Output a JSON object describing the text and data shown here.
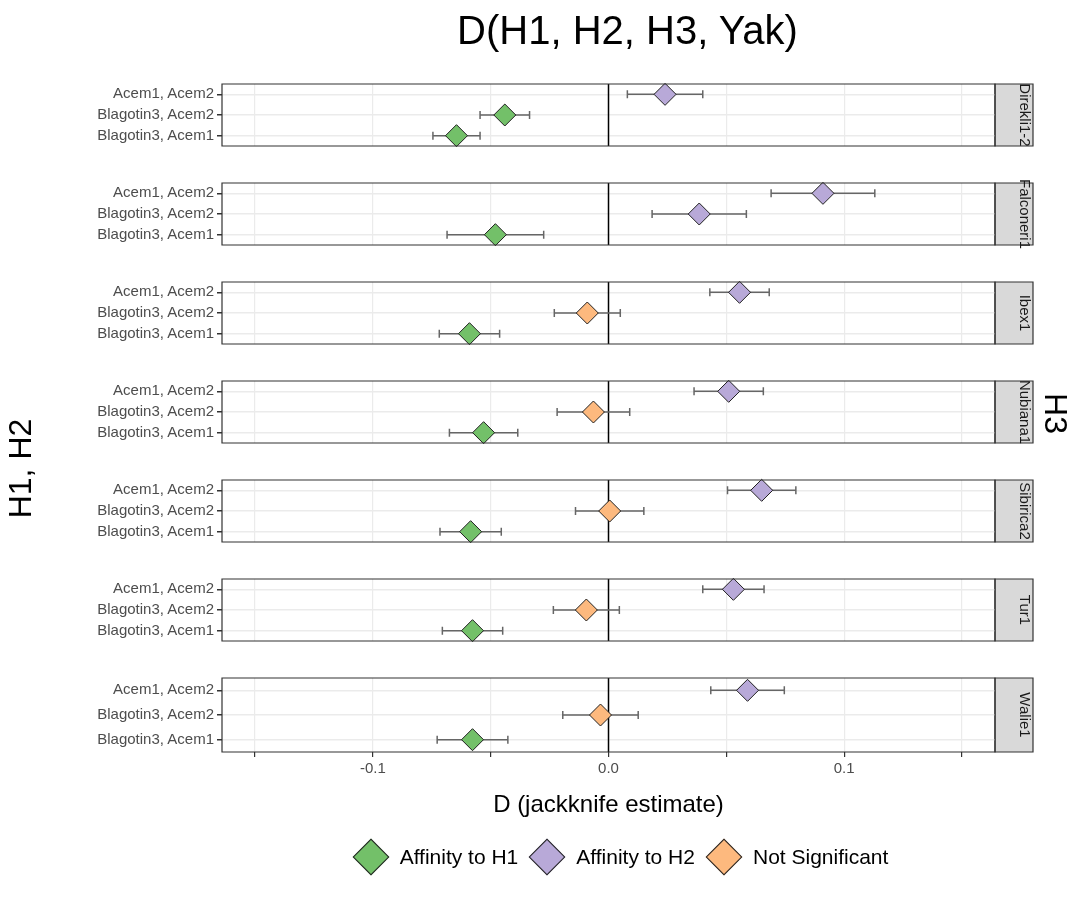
{
  "chart_data": [
    {
      "type": "scatter",
      "title": "D(H1, H2, H3, Yak)",
      "y2label": "Direkli1-2",
      "orientation": "horizontal",
      "marker": "diamond",
      "grid": true,
      "tick_labels": "y",
      "xlim": [
        -0.164,
        0.164
      ],
      "xticks": [
        {
          "value": -0.15,
          "label": null
        },
        {
          "value": -0.1,
          "label": null
        },
        {
          "value": -0.05,
          "label": null
        },
        {
          "value": 0,
          "label": null
        },
        {
          "value": 0.05,
          "label": null
        },
        {
          "value": 0.1,
          "label": null
        },
        {
          "value": 0.15,
          "label": null
        }
      ],
      "ref_lines": [
        {
          "axis": "x",
          "value": 0,
          "color": "#000000"
        }
      ],
      "categories": [
        "Acem1, Acem2",
        "Blagotin3, Acem2",
        "Blagotin3, Acem1"
      ],
      "series": [
        {
          "color": "#73c069",
          "values": [
            null,
            -0.044,
            -0.0645
          ],
          "errors": [
            null,
            0.0105,
            0.01
          ]
        },
        {
          "color": "#b8a9d8",
          "values": [
            0.024,
            null,
            null
          ],
          "errors": [
            0.016,
            null,
            null
          ]
        },
        {
          "color": "#fdb97e",
          "values": [
            null,
            null,
            null
          ],
          "errors": [
            null,
            null,
            null
          ]
        }
      ]
    },
    {
      "type": "scatter",
      "y2label": "Falconeri1",
      "orientation": "horizontal",
      "marker": "diamond",
      "grid": true,
      "tick_labels": "y",
      "xlim": [
        -0.164,
        0.164
      ],
      "xticks": [
        {
          "value": -0.15,
          "label": null
        },
        {
          "value": -0.1,
          "label": null
        },
        {
          "value": -0.05,
          "label": null
        },
        {
          "value": 0,
          "label": null
        },
        {
          "value": 0.05,
          "label": null
        },
        {
          "value": 0.1,
          "label": null
        },
        {
          "value": 0.15,
          "label": null
        }
      ],
      "ref_lines": [
        {
          "axis": "x",
          "value": 0,
          "color": "#000000"
        }
      ],
      "categories": [
        "Acem1, Acem2",
        "Blagotin3, Acem2",
        "Blagotin3, Acem1"
      ],
      "series": [
        {
          "color": "#73c069",
          "values": [
            null,
            null,
            -0.048
          ],
          "errors": [
            null,
            null,
            0.0205
          ]
        },
        {
          "color": "#b8a9d8",
          "values": [
            0.091,
            0.0385,
            null
          ],
          "errors": [
            0.022,
            0.02,
            null
          ]
        },
        {
          "color": "#fdb97e",
          "values": [
            null,
            null,
            null
          ],
          "errors": [
            null,
            null,
            null
          ]
        }
      ]
    },
    {
      "type": "scatter",
      "y2label": "Ibex1",
      "orientation": "horizontal",
      "marker": "diamond",
      "grid": true,
      "tick_labels": "y",
      "xlim": [
        -0.164,
        0.164
      ],
      "xticks": [
        {
          "value": -0.15,
          "label": null
        },
        {
          "value": -0.1,
          "label": null
        },
        {
          "value": -0.05,
          "label": null
        },
        {
          "value": 0,
          "label": null
        },
        {
          "value": 0.05,
          "label": null
        },
        {
          "value": 0.1,
          "label": null
        },
        {
          "value": 0.15,
          "label": null
        }
      ],
      "ref_lines": [
        {
          "axis": "x",
          "value": 0,
          "color": "#000000"
        }
      ],
      "categories": [
        "Acem1, Acem2",
        "Blagotin3, Acem2",
        "Blagotin3, Acem1"
      ],
      "series": [
        {
          "color": "#73c069",
          "values": [
            null,
            null,
            -0.059
          ],
          "errors": [
            null,
            null,
            0.0128
          ]
        },
        {
          "color": "#b8a9d8",
          "values": [
            0.0556,
            null,
            null
          ],
          "errors": [
            0.0126,
            null,
            null
          ]
        },
        {
          "color": "#fdb97e",
          "values": [
            null,
            -0.009,
            null
          ],
          "errors": [
            null,
            0.014,
            null
          ]
        }
      ]
    },
    {
      "type": "scatter",
      "ylabel": "H1, H2",
      "annotations": [
        "H3"
      ],
      "y2label": "Nubiana1",
      "orientation": "horizontal",
      "marker": "diamond",
      "grid": true,
      "tick_labels": "y",
      "xlim": [
        -0.164,
        0.164
      ],
      "xticks": [
        {
          "value": -0.15,
          "label": null
        },
        {
          "value": -0.1,
          "label": null
        },
        {
          "value": -0.05,
          "label": null
        },
        {
          "value": 0,
          "label": null
        },
        {
          "value": 0.05,
          "label": null
        },
        {
          "value": 0.1,
          "label": null
        },
        {
          "value": 0.15,
          "label": null
        }
      ],
      "ref_lines": [
        {
          "axis": "x",
          "value": 0,
          "color": "#000000"
        }
      ],
      "categories": [
        "Acem1, Acem2",
        "Blagotin3, Acem2",
        "Blagotin3, Acem1"
      ],
      "series": [
        {
          "color": "#73c069",
          "values": [
            null,
            null,
            -0.053
          ],
          "errors": [
            null,
            null,
            0.0145
          ]
        },
        {
          "color": "#b8a9d8",
          "values": [
            0.051,
            null,
            null
          ],
          "errors": [
            0.0147,
            null,
            null
          ]
        },
        {
          "color": "#fdb97e",
          "values": [
            null,
            -0.0064,
            null
          ],
          "errors": [
            null,
            0.0154,
            null
          ]
        }
      ]
    },
    {
      "type": "scatter",
      "y2label": "Sibirica2",
      "orientation": "horizontal",
      "marker": "diamond",
      "grid": true,
      "tick_labels": "y",
      "xlim": [
        -0.164,
        0.164
      ],
      "xticks": [
        {
          "value": -0.15,
          "label": null
        },
        {
          "value": -0.1,
          "label": null
        },
        {
          "value": -0.05,
          "label": null
        },
        {
          "value": 0,
          "label": null
        },
        {
          "value": 0.05,
          "label": null
        },
        {
          "value": 0.1,
          "label": null
        },
        {
          "value": 0.15,
          "label": null
        }
      ],
      "ref_lines": [
        {
          "axis": "x",
          "value": 0,
          "color": "#000000"
        }
      ],
      "categories": [
        "Acem1, Acem2",
        "Blagotin3, Acem2",
        "Blagotin3, Acem1"
      ],
      "series": [
        {
          "color": "#73c069",
          "values": [
            null,
            null,
            -0.0585
          ],
          "errors": [
            null,
            null,
            0.013
          ]
        },
        {
          "color": "#b8a9d8",
          "values": [
            0.065,
            null,
            null
          ],
          "errors": [
            0.0145,
            null,
            null
          ]
        },
        {
          "color": "#fdb97e",
          "values": [
            null,
            0.0005,
            null
          ],
          "errors": [
            null,
            0.0145,
            null
          ]
        }
      ]
    },
    {
      "type": "scatter",
      "y2label": "Tur1",
      "orientation": "horizontal",
      "marker": "diamond",
      "grid": true,
      "tick_labels": "y",
      "xlim": [
        -0.164,
        0.164
      ],
      "xticks": [
        {
          "value": -0.15,
          "label": null
        },
        {
          "value": -0.1,
          "label": null
        },
        {
          "value": -0.05,
          "label": null
        },
        {
          "value": 0,
          "label": null
        },
        {
          "value": 0.05,
          "label": null
        },
        {
          "value": 0.1,
          "label": null
        },
        {
          "value": 0.15,
          "label": null
        }
      ],
      "ref_lines": [
        {
          "axis": "x",
          "value": 0,
          "color": "#000000"
        }
      ],
      "categories": [
        "Acem1, Acem2",
        "Blagotin3, Acem2",
        "Blagotin3, Acem1"
      ],
      "series": [
        {
          "color": "#73c069",
          "values": [
            null,
            null,
            -0.0577
          ],
          "errors": [
            null,
            null,
            0.0128
          ]
        },
        {
          "color": "#b8a9d8",
          "values": [
            0.053,
            null,
            null
          ],
          "errors": [
            0.013,
            null,
            null
          ]
        },
        {
          "color": "#fdb97e",
          "values": [
            null,
            -0.0094,
            null
          ],
          "errors": [
            null,
            0.014,
            null
          ]
        }
      ]
    },
    {
      "type": "scatter",
      "y2label": "Walie1",
      "xlabel": "D (jackknife estimate)",
      "legend": "bottom",
      "orientation": "horizontal",
      "marker": "diamond",
      "grid": true,
      "xlim": [
        -0.164,
        0.164
      ],
      "xticks": [
        {
          "value": -0.15,
          "label": null
        },
        {
          "value": -0.1,
          "label": "-0.1"
        },
        {
          "value": -0.05,
          "label": null
        },
        {
          "value": 0,
          "label": "0.0"
        },
        {
          "value": 0.05,
          "label": null
        },
        {
          "value": 0.1,
          "label": "0.1"
        },
        {
          "value": 0.15,
          "label": null
        }
      ],
      "ref_lines": [
        {
          "axis": "x",
          "value": 0,
          "color": "#000000"
        }
      ],
      "categories": [
        "Acem1, Acem2",
        "Blagotin3, Acem2",
        "Blagotin3, Acem1"
      ],
      "series": [
        {
          "name": "Affinity to H1",
          "color": "#73c069",
          "values": [
            null,
            null,
            -0.0577
          ],
          "errors": [
            null,
            null,
            0.015
          ]
        },
        {
          "name": "Affinity to H2",
          "color": "#b8a9d8",
          "values": [
            0.059,
            null,
            null
          ],
          "errors": [
            0.0156,
            null,
            null
          ]
        },
        {
          "name": "Not Significant",
          "color": "#fdb97e",
          "values": [
            null,
            -0.0034,
            null
          ],
          "errors": [
            null,
            0.016,
            null
          ]
        }
      ]
    }
  ]
}
